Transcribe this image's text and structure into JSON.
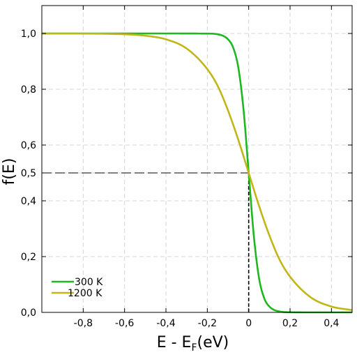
{
  "chart_data": {
    "type": "line",
    "title": "",
    "xlabel": "E - E",
    "xlabel_subscript": "F",
    "xlabel_unit": "(eV)",
    "ylabel": "f(E)",
    "xlim": [
      -1.0,
      0.5
    ],
    "ylim": [
      0.0,
      1.1
    ],
    "x_ticks": [
      -0.8,
      -0.6,
      -0.4,
      -0.2,
      0,
      0.2,
      0.4
    ],
    "x_tick_labels": [
      "-0,8",
      "-0,6",
      "-0,4",
      "-0,2",
      "0",
      "0,2",
      "0,4"
    ],
    "y_ticks": [
      0.0,
      0.2,
      0.4,
      0.5,
      0.6,
      0.8,
      1.0
    ],
    "y_tick_labels": [
      "0,0",
      "0,2",
      "0,4",
      "0,5",
      "0,6",
      "0,8",
      "1,0"
    ],
    "grid": true,
    "legend_position": "bottom-left",
    "reference_lines": [
      {
        "orientation": "horizontal",
        "y": 0.5,
        "x_from": -1.0,
        "x_to": 0.0,
        "style": "dashed"
      },
      {
        "orientation": "vertical",
        "x": 0.0,
        "y_from": 0.0,
        "y_to": 0.5,
        "style": "dashed"
      }
    ],
    "series": [
      {
        "name": "300 K",
        "color": "#1db81d",
        "x": [
          -1.0,
          -0.8,
          -0.6,
          -0.4,
          -0.2,
          -0.15,
          -0.1,
          -0.075,
          -0.05,
          -0.025,
          0.0,
          0.025,
          0.05,
          0.075,
          0.1,
          0.15,
          0.2,
          0.3,
          0.4,
          0.5
        ],
        "values": [
          1.0,
          1.0,
          1.0,
          1.0,
          0.9995,
          0.997,
          0.979,
          0.949,
          0.877,
          0.727,
          0.5,
          0.273,
          0.123,
          0.051,
          0.021,
          0.003,
          0.0005,
          0.0,
          0.0,
          0.0
        ]
      },
      {
        "name": "1200 K",
        "color": "#c2b616",
        "x": [
          -1.0,
          -0.8,
          -0.6,
          -0.5,
          -0.4,
          -0.3,
          -0.2,
          -0.15,
          -0.1,
          -0.05,
          0.0,
          0.05,
          0.1,
          0.15,
          0.2,
          0.3,
          0.4,
          0.5
        ],
        "values": [
          0.9999,
          0.9996,
          0.997,
          0.992,
          0.979,
          0.946,
          0.872,
          0.812,
          0.724,
          0.618,
          0.5,
          0.382,
          0.276,
          0.188,
          0.128,
          0.054,
          0.021,
          0.008
        ]
      }
    ]
  }
}
